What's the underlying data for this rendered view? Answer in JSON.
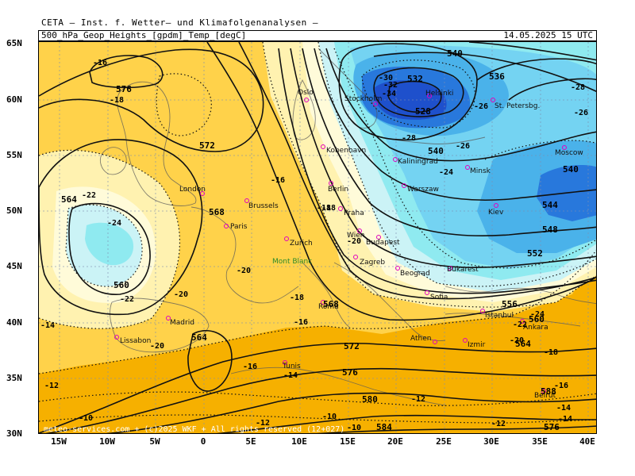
{
  "header": {
    "source": "CETA — Inst. f. Wetter— und Klimafolgenanalysen —",
    "product": "500_hPa_Geop_Heights_[gpdm]_Temp_[degC]",
    "valid_time": "14.05.2025 15 UTC"
  },
  "axes": {
    "lat_labels": [
      "65N",
      "60N",
      "55N",
      "50N",
      "45N",
      "40N",
      "35N",
      "30N"
    ],
    "lon_labels": [
      "15W",
      "10W",
      "5W",
      "0",
      "5E",
      "10E",
      "15E",
      "20E",
      "25E",
      "30E",
      "35E",
      "40E"
    ]
  },
  "credit": "meteo-services.com + (c)2025 WKF + All rights reserved (12+027)",
  "colors": {
    "deep_orange": "#f39a00",
    "orange": "#f6b000",
    "yellow": "#ffd24a",
    "light_yellow": "#fff2b0",
    "cream": "#fffbd9",
    "pale_cyan": "#cbf3f6",
    "cyan": "#8feaf0",
    "light_blue": "#74d3f2",
    "blue": "#4ab2ea",
    "deep_blue": "#2878dc",
    "core_blue": "#1e50cc"
  },
  "cities": [
    {
      "name": "Oslo"
    },
    {
      "name": "Stockholm"
    },
    {
      "name": "Helsinki"
    },
    {
      "name": "St. Petersbg."
    },
    {
      "name": "Kobenhavn"
    },
    {
      "name": "Kaliningrad"
    },
    {
      "name": "Moscow"
    },
    {
      "name": "Minsk"
    },
    {
      "name": "London"
    },
    {
      "name": "Brussels"
    },
    {
      "name": "Berlin"
    },
    {
      "name": "Warszaw"
    },
    {
      "name": "Kiev"
    },
    {
      "name": "Paris"
    },
    {
      "name": "Praha"
    },
    {
      "name": "Wien"
    },
    {
      "name": "Budapest"
    },
    {
      "name": "Zurich"
    },
    {
      "name": "Mont Blanc"
    },
    {
      "name": "Zagreb"
    },
    {
      "name": "Beograd"
    },
    {
      "name": "Bukarest"
    },
    {
      "name": "Sofia"
    },
    {
      "name": "Istanbul"
    },
    {
      "name": "Ankara"
    },
    {
      "name": "Madrid"
    },
    {
      "name": "Lissabon"
    },
    {
      "name": "Roma"
    },
    {
      "name": "Athen"
    },
    {
      "name": "Izmir"
    },
    {
      "name": "Tunis"
    },
    {
      "name": "Beirut"
    }
  ],
  "height_contours": [
    {
      "text": "576"
    },
    {
      "text": "572"
    },
    {
      "text": "564"
    },
    {
      "text": "568"
    },
    {
      "text": "560"
    },
    {
      "text": "564"
    },
    {
      "text": "568"
    },
    {
      "text": "572"
    },
    {
      "text": "576"
    },
    {
      "text": "580"
    },
    {
      "text": "584"
    },
    {
      "text": "588"
    },
    {
      "text": "540"
    },
    {
      "text": "532"
    },
    {
      "text": "528"
    },
    {
      "text": "536"
    },
    {
      "text": "540"
    },
    {
      "text": "540"
    },
    {
      "text": "544"
    },
    {
      "text": "548"
    },
    {
      "text": "552"
    },
    {
      "text": "556"
    },
    {
      "text": "560"
    },
    {
      "text": "564"
    },
    {
      "text": "576"
    }
  ],
  "temp_labels": [
    {
      "text": "-16"
    },
    {
      "text": "-18"
    },
    {
      "text": "-22"
    },
    {
      "text": "-24"
    },
    {
      "text": "-22"
    },
    {
      "text": "-20"
    },
    {
      "text": "-20"
    },
    {
      "text": "-16"
    },
    {
      "text": "-18"
    },
    {
      "text": "-20"
    },
    {
      "text": "-18"
    },
    {
      "text": "-16"
    },
    {
      "text": "-14"
    },
    {
      "text": "-16"
    },
    {
      "text": "-14"
    },
    {
      "text": "-12"
    },
    {
      "text": "-12"
    },
    {
      "text": "-12"
    },
    {
      "text": "-10"
    },
    {
      "text": "-10"
    },
    {
      "text": "-30"
    },
    {
      "text": "-32"
    },
    {
      "text": "-34"
    },
    {
      "text": "-28"
    },
    {
      "text": "-26"
    },
    {
      "text": "-26"
    },
    {
      "text": "-24"
    },
    {
      "text": "-28"
    },
    {
      "text": "-26"
    },
    {
      "text": "-24"
    },
    {
      "text": "-22"
    },
    {
      "text": "-20"
    },
    {
      "text": "-18"
    },
    {
      "text": "-16"
    },
    {
      "text": "-14"
    },
    {
      "text": "-12"
    },
    {
      "text": "-14"
    },
    {
      "text": "-10"
    },
    {
      "text": "-20"
    },
    {
      "text": "-18"
    }
  ]
}
